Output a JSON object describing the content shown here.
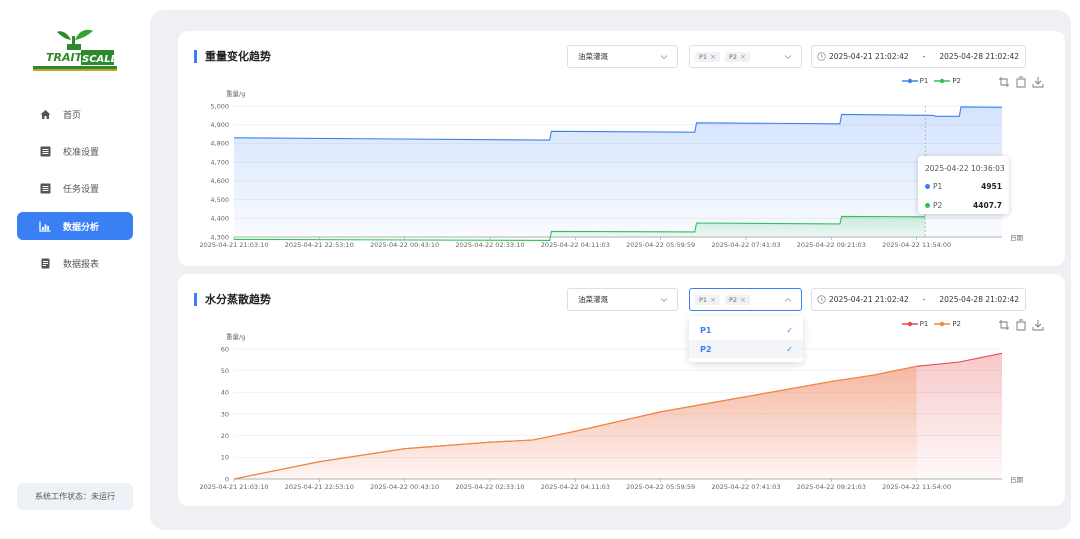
{
  "sidebar": {
    "logo_text": "TRAIT SCALE",
    "items": [
      {
        "label": "首页",
        "icon": "home-icon",
        "active": false
      },
      {
        "label": "校准设置",
        "icon": "list-icon",
        "active": false
      },
      {
        "label": "任务设置",
        "icon": "list-icon",
        "active": false
      },
      {
        "label": "数据分析",
        "icon": "bar-chart-icon",
        "active": true
      },
      {
        "label": "数据报表",
        "icon": "document-icon",
        "active": false
      }
    ],
    "status_text": "系统工作状态：未运行"
  },
  "panel1": {
    "title": "重量变化趋势",
    "crop_select": "油菜灌溉",
    "tags": [
      "P1",
      "P2"
    ],
    "date_start": "2025-04-21 21:02:42",
    "date_sep": "-",
    "date_end": "2025-04-28 21:02:42",
    "legend": [
      {
        "name": "P1",
        "color": "#3b7ff5"
      },
      {
        "name": "P2",
        "color": "#2fc25b"
      }
    ],
    "tooltip": {
      "time": "2025-04-22 10:36:03",
      "rows": [
        {
          "name": "P1",
          "value": "4951",
          "color": "#3b7ff5"
        },
        {
          "name": "P2",
          "value": "4407.7",
          "color": "#2fc25b"
        }
      ]
    }
  },
  "panel2": {
    "title": "水分蒸散趋势",
    "crop_select": "油菜灌溉",
    "tags": [
      "P1",
      "P2"
    ],
    "date_start": "2025-04-21 21:02:42",
    "date_sep": "-",
    "date_end": "2025-04-28 21:02:42",
    "legend": [
      {
        "name": "P1",
        "color": "#e5484d"
      },
      {
        "name": "P2",
        "color": "#f08a3c"
      }
    ],
    "dropdown": [
      {
        "label": "P1",
        "checked": true
      },
      {
        "label": "P2",
        "checked": true
      }
    ]
  },
  "chart_data": [
    {
      "type": "area",
      "title": "重量变化趋势",
      "ylabel": "重量/g",
      "xlabel": "日期",
      "ylim": [
        4300,
        5000
      ],
      "yticks": [
        "4,300",
        "4,400",
        "4,500",
        "4,600",
        "4,700",
        "4,800",
        "4,900",
        "5,000"
      ],
      "categories": [
        "2025-04-21 21:03:10",
        "2025-04-21 22:53:10",
        "2025-04-22 00:43:10",
        "2025-04-22 02:33:10",
        "2025-04-22 04:11:03",
        "2025-04-22 05:59:59",
        "2025-04-22 07:41:03",
        "2025-04-22 09:21:03",
        "2025-04-22 11:54:00"
      ],
      "grid": true,
      "legend_position": "top-right",
      "series": [
        {
          "name": "P1",
          "color": "#3b7ff5",
          "x": [
            0,
            3.7,
            3.72,
            5.4,
            5.42,
            7.1,
            7.12,
            8.2,
            8.22,
            8.5,
            8.52,
            9.0
          ],
          "values": [
            4830,
            4818,
            4865,
            4860,
            4910,
            4905,
            4955,
            4950,
            4945,
            4945,
            4995,
            4993
          ]
        },
        {
          "name": "P2",
          "color": "#2fc25b",
          "x": [
            0,
            3.7,
            3.72,
            5.4,
            5.42,
            7.1,
            7.12,
            8.1
          ],
          "values": [
            4287,
            4282,
            4330,
            4327,
            4375,
            4370,
            4410,
            4408
          ]
        }
      ]
    },
    {
      "type": "area",
      "title": "水分蒸散趋势",
      "ylabel": "重量/g",
      "xlabel": "日期",
      "ylim": [
        0,
        60
      ],
      "yticks": [
        "0",
        "10",
        "20",
        "30",
        "40",
        "50",
        "60"
      ],
      "categories": [
        "2025-04-21 21:03:10",
        "2025-04-21 22:53:10",
        "2025-04-22 00:43:10",
        "2025-04-22 02:33:10",
        "2025-04-22 04:11:03",
        "2025-04-22 05:59:59",
        "2025-04-22 07:41:03",
        "2025-04-22 09:21:03",
        "2025-04-22 11:54:00"
      ],
      "grid": true,
      "legend_position": "top-right",
      "series": [
        {
          "name": "P1",
          "color": "#e5484d",
          "x": [
            0,
            1,
            2,
            3,
            3.5,
            4,
            5,
            6,
            7,
            7.5,
            8,
            8.5,
            9.0
          ],
          "values": [
            0,
            8,
            14,
            17,
            18,
            22,
            31,
            38,
            45,
            48,
            52,
            54,
            58
          ]
        },
        {
          "name": "P2",
          "color": "#f08a3c",
          "x": [
            0,
            1,
            2,
            3,
            3.5,
            4,
            5,
            6,
            7,
            7.5,
            8
          ],
          "values": [
            0,
            8,
            14,
            17,
            18,
            22,
            31,
            38,
            45,
            48,
            52
          ]
        }
      ]
    }
  ]
}
